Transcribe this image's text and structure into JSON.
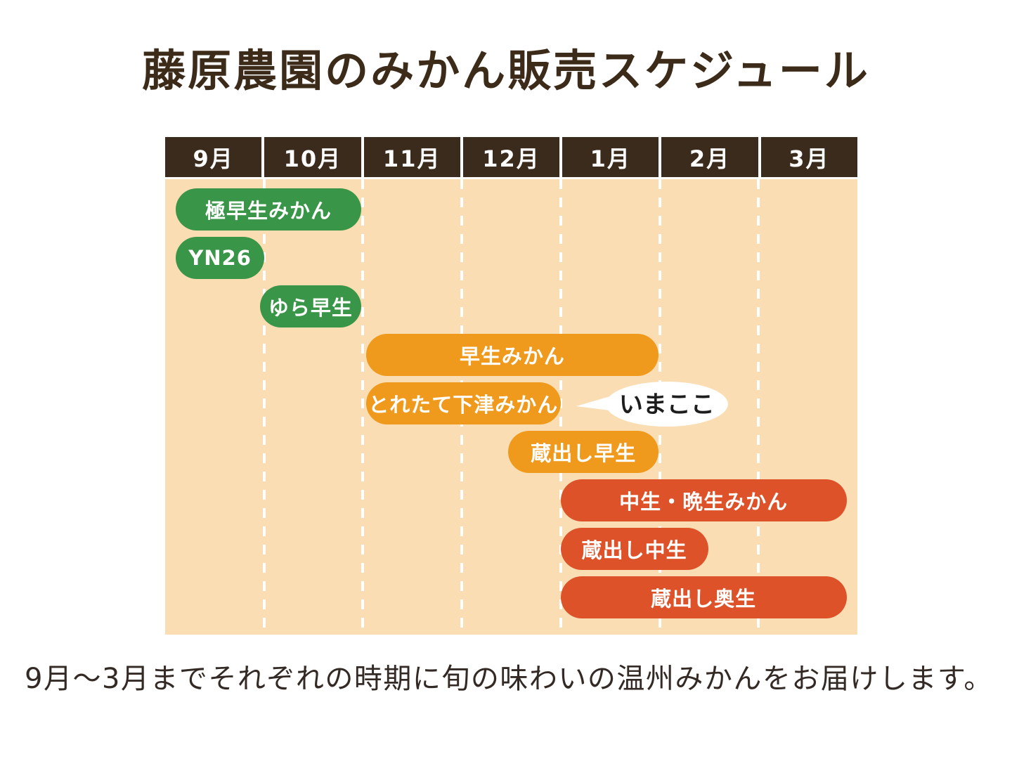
{
  "title": "藤原農園のみかん販売スケジュール",
  "caption": "9月〜3月までそれぞれの時期に旬の味わいの温州みかんをお届けします。",
  "colors": {
    "title_text": "#3D2B1A",
    "caption_text": "#332A26",
    "header_bg": "#3B2B1C",
    "chart_bg": "#FADDB2",
    "grid_line": "#FFFFFF",
    "green": "#399547",
    "orange": "#F09A1D",
    "red_orange": "#DE522A",
    "bar_text": "#FFFFFF",
    "bubble_bg": "#FFFFFF",
    "bubble_text": "#1D1D1D"
  },
  "chart_data": {
    "type": "gantt",
    "title": "藤原農園のみかん販売スケジュール",
    "months": [
      "9月",
      "10月",
      "11月",
      "12月",
      "1月",
      "2月",
      "3月"
    ],
    "axis_note": "start/end are month offsets: 0 = start of 9月, 7 = end of 3月",
    "grid": "dashed-white-vertical-lines",
    "bars": [
      {
        "label": "極早生みかん",
        "start": 0.11,
        "end": 1.98,
        "row": 0,
        "color_key": "green"
      },
      {
        "label": "YN26",
        "start": 0.11,
        "end": 1.0,
        "row": 1,
        "color_key": "green"
      },
      {
        "label": "ゆら早生",
        "start": 0.96,
        "end": 1.98,
        "row": 2,
        "color_key": "green"
      },
      {
        "label": "早生みかん",
        "start": 2.03,
        "end": 4.99,
        "row": 3,
        "color_key": "orange"
      },
      {
        "label": "とれたて下津みかん",
        "start": 2.03,
        "end": 4.0,
        "row": 4,
        "color_key": "orange",
        "has_now_marker": true
      },
      {
        "label": "蔵出し早生",
        "start": 3.47,
        "end": 4.99,
        "row": 5,
        "color_key": "orange"
      },
      {
        "label": "中生・晩生みかん",
        "start": 4.0,
        "end": 6.89,
        "row": 6,
        "color_key": "red_orange"
      },
      {
        "label": "蔵出し中生",
        "start": 4.0,
        "end": 5.49,
        "row": 7,
        "color_key": "red_orange"
      },
      {
        "label": "蔵出し奥生",
        "start": 4.0,
        "end": 6.89,
        "row": 8,
        "color_key": "red_orange"
      }
    ],
    "now_marker": {
      "text": "いまここ",
      "attached_to": "とれたて下津みかん"
    }
  }
}
